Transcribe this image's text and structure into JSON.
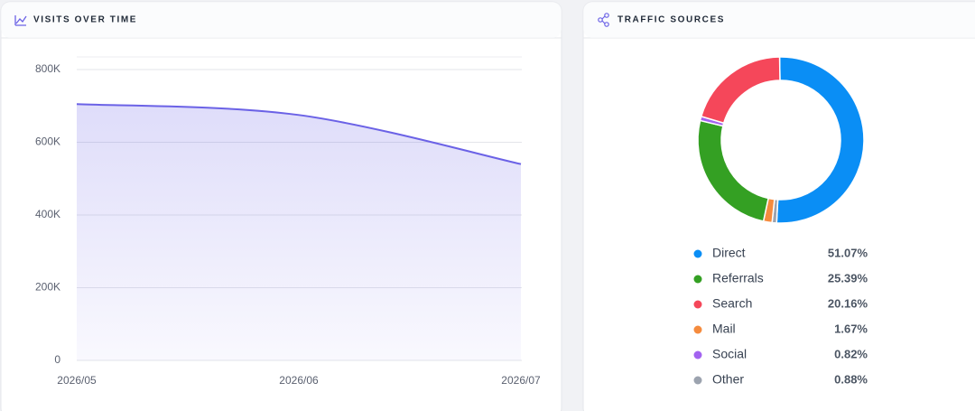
{
  "chart_data": [
    {
      "type": "area",
      "title": "VISITS OVER TIME",
      "categories": [
        "2026/05",
        "2026/06",
        "2026/07"
      ],
      "values": [
        705000,
        675000,
        540000
      ],
      "color": "#6b62e6",
      "ylim": [
        0,
        835000
      ],
      "yticks": [
        0,
        {
          "value": 200000,
          "label": "200K"
        },
        {
          "value": 400000,
          "label": "400K"
        },
        {
          "value": 600000,
          "label": "600K"
        },
        {
          "value": 800000,
          "label": "800K"
        }
      ],
      "grid": true
    },
    {
      "type": "donut",
      "title": "TRAFFIC SOURCES",
      "categories": [
        "Direct",
        "Referrals",
        "Search",
        "Mail",
        "Social",
        "Other"
      ],
      "values": [
        51.07,
        25.39,
        20.16,
        1.67,
        0.82,
        0.88
      ],
      "value_labels": [
        "51.07%",
        "25.39%",
        "20.16%",
        "1.67%",
        "0.82%",
        "0.88%"
      ],
      "colors": [
        "#0a8ef5",
        "#34a023",
        "#f5475a",
        "#f58b3e",
        "#a363f0",
        "#9ca3af"
      ]
    }
  ]
}
